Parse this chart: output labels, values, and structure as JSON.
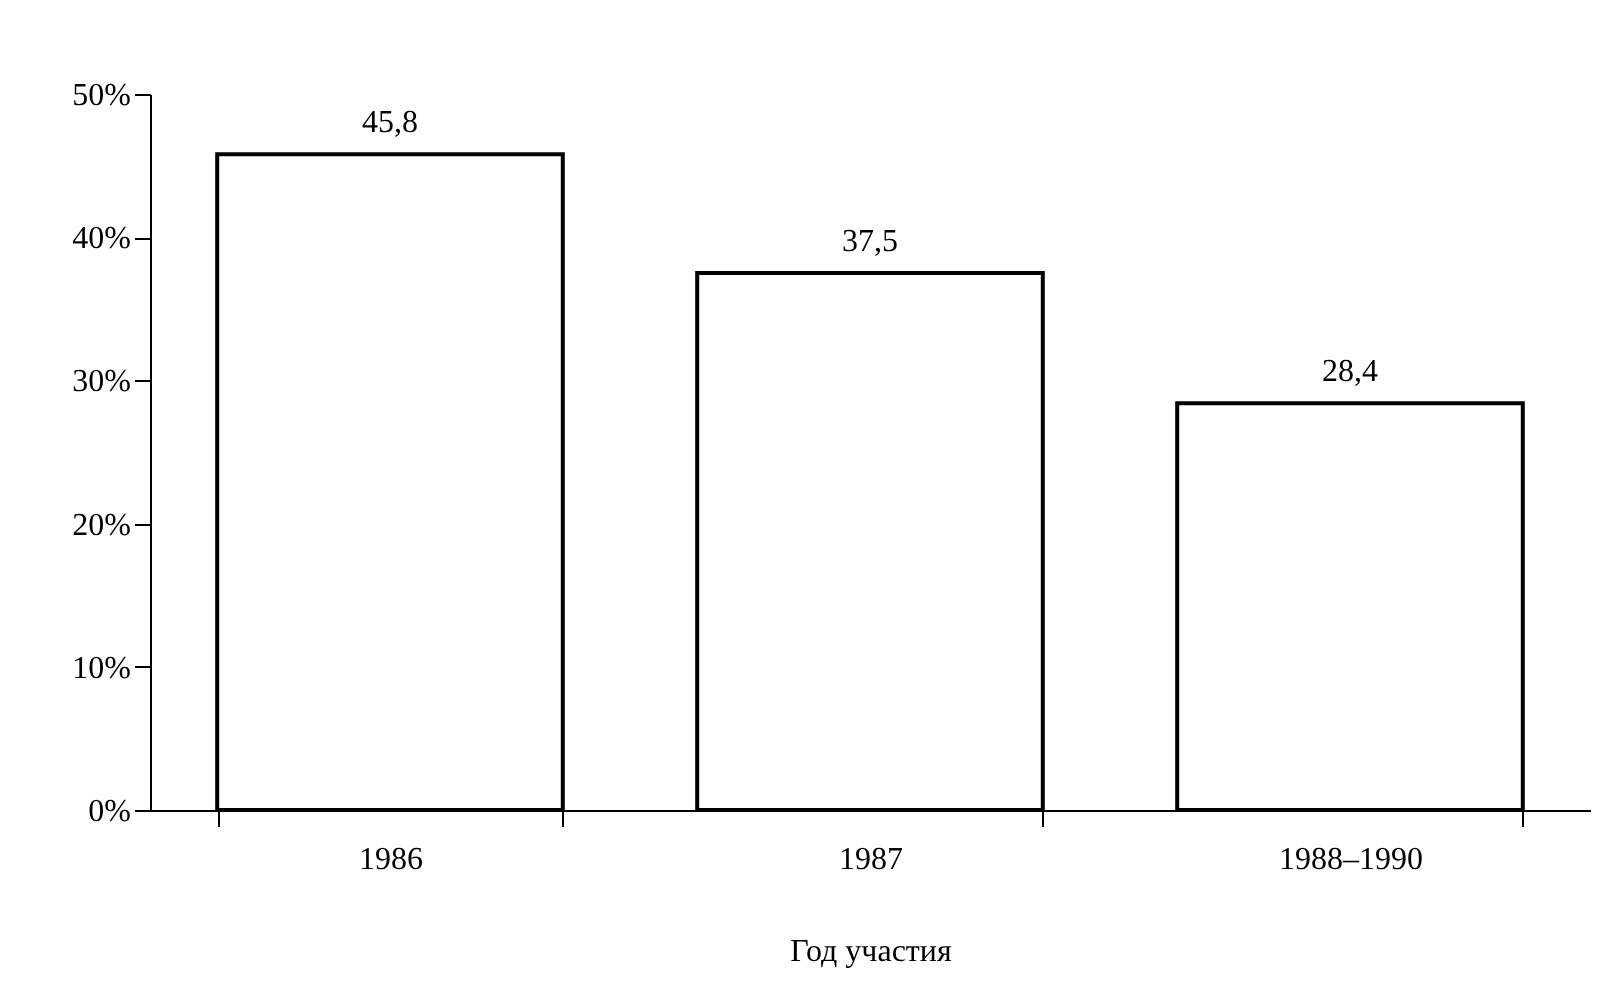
{
  "chart_data": {
    "type": "bar",
    "xlabel": "Год участия",
    "categories": [
      "1986",
      "1987",
      "1988–1990"
    ],
    "series": [
      {
        "color": "#ffffff",
        "values": [
          45.8,
          37.5,
          28.4
        ],
        "value_labels": [
          "45,8",
          "37,5",
          "28,4"
        ]
      }
    ],
    "ylim": [
      0,
      50
    ],
    "yticks": [
      {
        "value": 0,
        "label": "0%"
      },
      {
        "value": 10,
        "label": "10%"
      },
      {
        "value": 20,
        "label": "20%"
      },
      {
        "value": 30,
        "label": "30%"
      },
      {
        "value": 40,
        "label": "40%"
      },
      {
        "value": 50,
        "label": "50%"
      }
    ],
    "grid": false
  }
}
